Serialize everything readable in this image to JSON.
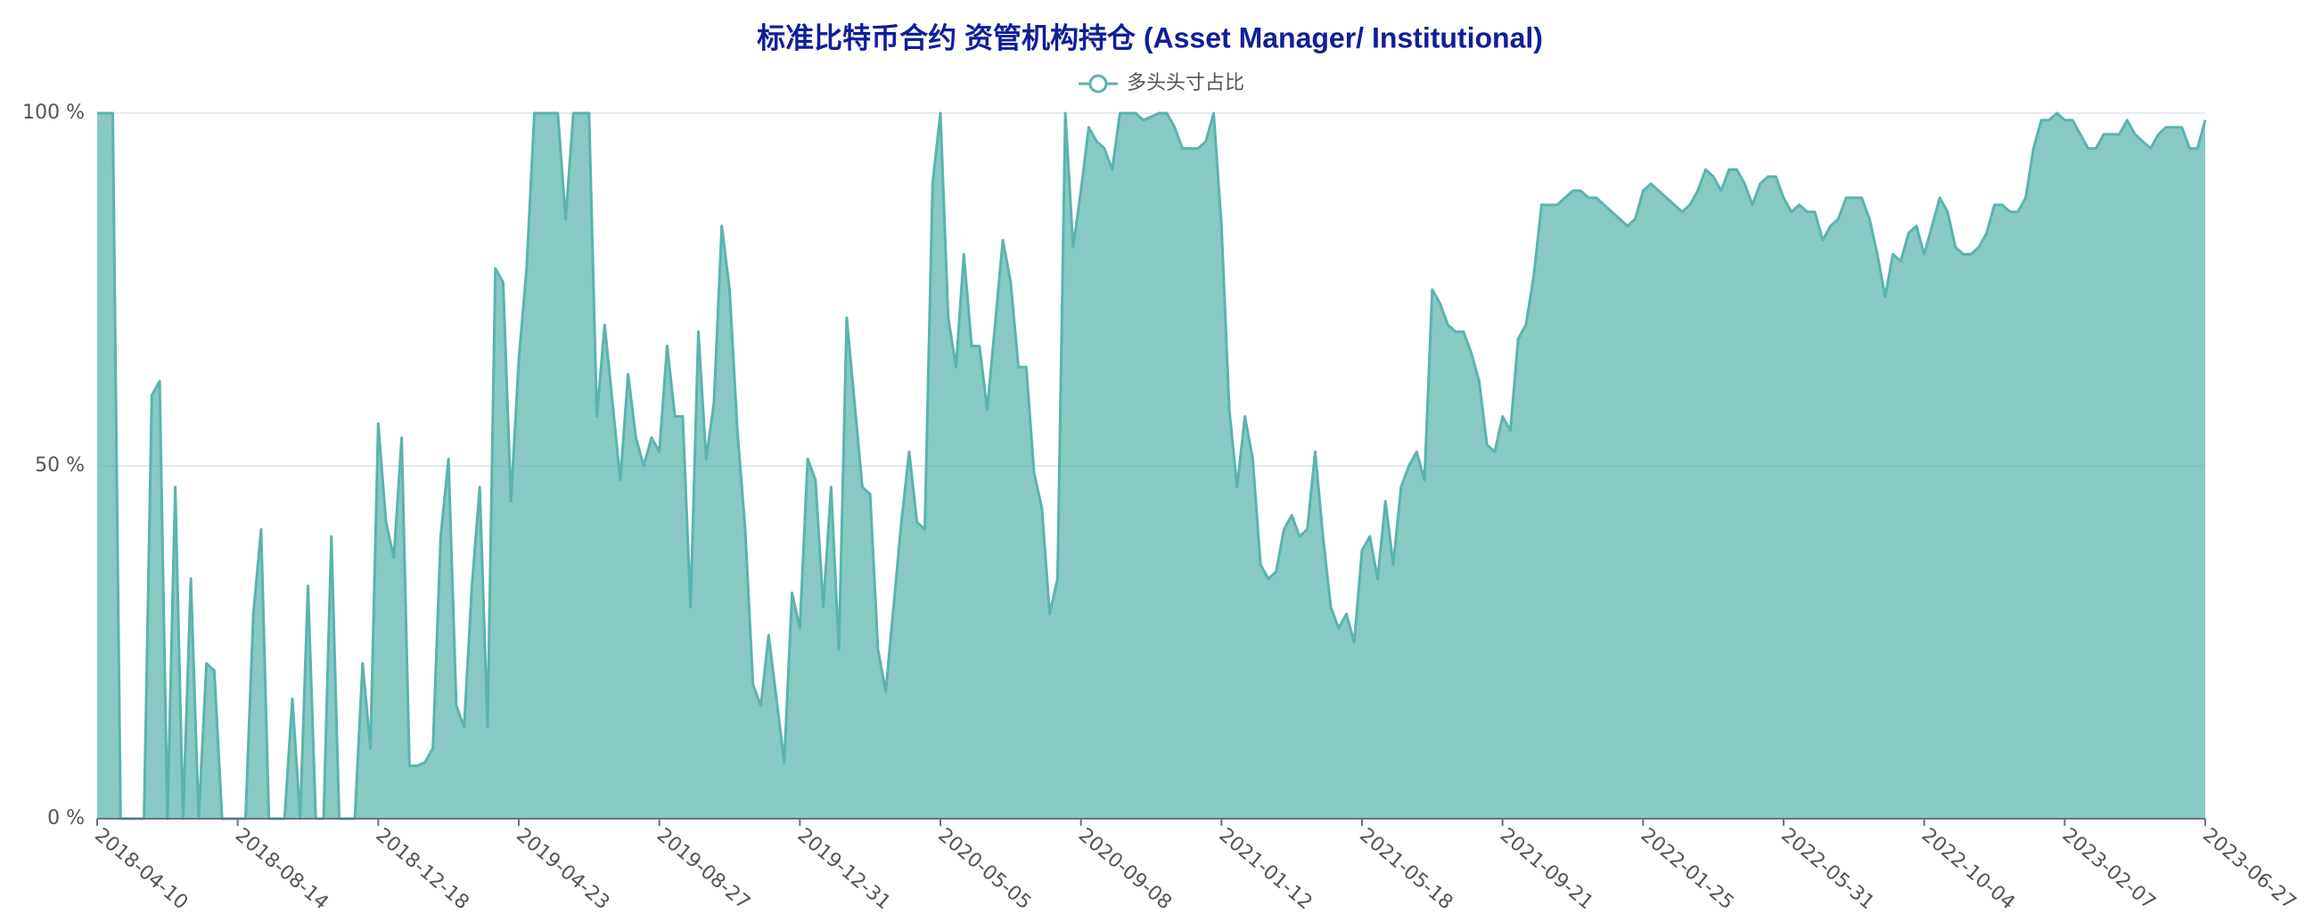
{
  "chart_data": {
    "type": "area",
    "title": "标准比特币合约 资管机构持仓 (Asset Manager/ Institutional)",
    "categories": [
      "2018-04-10",
      null,
      null,
      null,
      null,
      null,
      null,
      null,
      null,
      null,
      null,
      null,
      null,
      null,
      null,
      null,
      null,
      null,
      "2018-08-14",
      null,
      null,
      null,
      null,
      null,
      null,
      null,
      null,
      null,
      null,
      null,
      null,
      null,
      null,
      null,
      null,
      null,
      "2018-12-18",
      null,
      null,
      null,
      null,
      null,
      null,
      null,
      null,
      null,
      null,
      null,
      null,
      null,
      null,
      null,
      null,
      null,
      "2019-04-23",
      null,
      null,
      null,
      null,
      null,
      null,
      null,
      null,
      null,
      null,
      null,
      null,
      null,
      null,
      null,
      null,
      null,
      "2019-08-27",
      null,
      null,
      null,
      null,
      null,
      null,
      null,
      null,
      null,
      null,
      null,
      null,
      null,
      null,
      null,
      null,
      null,
      "2019-12-31",
      null,
      null,
      null,
      null,
      null,
      null,
      null,
      null,
      null,
      null,
      null,
      null,
      null,
      null,
      null,
      null,
      null,
      "2020-05-05",
      null,
      null,
      null,
      null,
      null,
      null,
      null,
      null,
      null,
      null,
      null,
      null,
      null,
      null,
      null,
      null,
      null,
      "2020-09-08",
      null,
      null,
      null,
      null,
      null,
      null,
      null,
      null,
      null,
      null,
      null,
      null,
      null,
      null,
      null,
      null,
      null,
      "2021-01-12",
      null,
      null,
      null,
      null,
      null,
      null,
      null,
      null,
      null,
      null,
      null,
      null,
      null,
      null,
      null,
      null,
      null,
      "2021-05-18",
      null,
      null,
      null,
      null,
      null,
      null,
      null,
      null,
      null,
      null,
      null,
      null,
      null,
      null,
      null,
      null,
      null,
      "2021-09-21",
      null,
      null,
      null,
      null,
      null,
      null,
      null,
      null,
      null,
      null,
      null,
      null,
      null,
      null,
      null,
      null,
      null,
      "2022-01-25",
      null,
      null,
      null,
      null,
      null,
      null,
      null,
      null,
      null,
      null,
      null,
      null,
      null,
      null,
      null,
      null,
      null,
      "2022-05-31",
      null,
      null,
      null,
      null,
      null,
      null,
      null,
      null,
      null,
      null,
      null,
      null,
      null,
      null,
      null,
      null,
      null,
      "2022-10-04",
      null,
      null,
      null,
      null,
      null,
      null,
      null,
      null,
      null,
      null,
      null,
      null,
      null,
      null,
      null,
      null,
      null,
      "2023-02-07",
      null,
      null,
      null,
      null,
      null,
      null,
      null,
      null,
      null,
      null,
      null,
      null,
      null,
      null,
      null,
      null,
      null,
      "2023-06-27"
    ],
    "series": [
      {
        "name": "多头头寸占比",
        "color": "#5ab4ad",
        "values": [
          100,
          100,
          100,
          0,
          0,
          0,
          0,
          60,
          62,
          0,
          47,
          0,
          34,
          0,
          22,
          21,
          0,
          0,
          0,
          0,
          29,
          41,
          0,
          0,
          0,
          17,
          0,
          33,
          0,
          0,
          40,
          0,
          0,
          0,
          22,
          10,
          56,
          42,
          37,
          54,
          7.5,
          7.5,
          8,
          10,
          40,
          51,
          16,
          13,
          33,
          47,
          13,
          78,
          76,
          45,
          65,
          78,
          100,
          100,
          100,
          100,
          85,
          100,
          100,
          100,
          57,
          70,
          59,
          48,
          63,
          54,
          50,
          54,
          52,
          67,
          57,
          57,
          30,
          69,
          51,
          59,
          84,
          75,
          55,
          41,
          19,
          16,
          26,
          17,
          8,
          32,
          27,
          51,
          48,
          30,
          47,
          24,
          71,
          59,
          47,
          46,
          24,
          18,
          30,
          42,
          52,
          42,
          41,
          90,
          100,
          71,
          64,
          80,
          67,
          67,
          58,
          70,
          82,
          76,
          64,
          64,
          49,
          44,
          29,
          34,
          100,
          81,
          89,
          98,
          96,
          95,
          92,
          100,
          100,
          100,
          99,
          99.5,
          100,
          100,
          98,
          95,
          95,
          95,
          96,
          100,
          84,
          58,
          47,
          57,
          51,
          36,
          34,
          35,
          41,
          43,
          40,
          41,
          52,
          40,
          30,
          27,
          29,
          25,
          38,
          40,
          34,
          45,
          36,
          47,
          50,
          52,
          48,
          75,
          73,
          70,
          69,
          69,
          66,
          62,
          53,
          52,
          57,
          55,
          68,
          70,
          77,
          87,
          87,
          87,
          88,
          89,
          89,
          88,
          88,
          87,
          86,
          85,
          84,
          85,
          89,
          90,
          89,
          88,
          87,
          86,
          87,
          89,
          92,
          91,
          89,
          92,
          92,
          90,
          87,
          90,
          91,
          91,
          88,
          86,
          87,
          86,
          86,
          82,
          84,
          85,
          88,
          88,
          88,
          85,
          80,
          74,
          80,
          79,
          83,
          84,
          80,
          84,
          88,
          86,
          81,
          80,
          80,
          81,
          83,
          87,
          87,
          86,
          86,
          88,
          95,
          99,
          99,
          100,
          99,
          99,
          97,
          95,
          95,
          97,
          97,
          97,
          99,
          97,
          96,
          95,
          97,
          98,
          98,
          98,
          95,
          95,
          99
        ]
      }
    ],
    "ylim": [
      0,
      100
    ],
    "yticks": [
      {
        "value": 0,
        "label": "0 %"
      },
      {
        "value": 50,
        "label": "50 %"
      },
      {
        "value": 100,
        "label": "100 %"
      }
    ],
    "grid": true
  }
}
